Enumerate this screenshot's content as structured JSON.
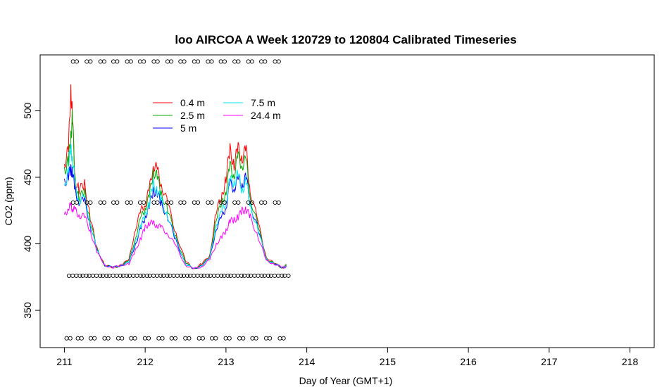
{
  "chart_data": {
    "type": "line",
    "title": "loo AIRCOA A  Week 120729 to 120804  Calibrated Timeseries",
    "xlabel": "Day of Year (GMT+1)",
    "ylabel": "CO2 (ppm)",
    "xlim": [
      210.7,
      218.3
    ],
    "ylim": [
      322,
      542
    ],
    "xticks": [
      "211",
      "212",
      "213",
      "214",
      "215",
      "216",
      "217",
      "218"
    ],
    "yticks": [
      "350",
      "400",
      "450",
      "500"
    ],
    "grid": false,
    "legend_position": "top-left",
    "series": [
      {
        "name": "0.4 m",
        "color": "#ff0000",
        "x": [
          211.0,
          211.05,
          211.08,
          211.1,
          211.13,
          211.18,
          211.25,
          211.32,
          211.4,
          211.5,
          211.6,
          211.7,
          211.8,
          211.88,
          211.95,
          212.0,
          212.05,
          212.1,
          212.15,
          212.2,
          212.28,
          212.38,
          212.5,
          212.6,
          212.7,
          212.8,
          212.88,
          212.95,
          213.0,
          213.05,
          213.1,
          213.15,
          213.2,
          213.25,
          213.3,
          213.4,
          213.5,
          213.6,
          213.7,
          213.75
        ],
        "y": [
          460,
          470,
          517,
          495,
          450,
          440,
          445,
          420,
          397,
          384,
          382,
          384,
          388,
          412,
          425,
          430,
          440,
          460,
          455,
          445,
          430,
          408,
          387,
          381,
          385,
          391,
          425,
          435,
          450,
          470,
          460,
          471,
          465,
          470,
          440,
          415,
          390,
          385,
          382,
          384
        ]
      },
      {
        "name": "2.5 m",
        "color": "#00aa00",
        "x": [
          211.0,
          211.05,
          211.08,
          211.1,
          211.13,
          211.18,
          211.25,
          211.32,
          211.4,
          211.5,
          211.6,
          211.7,
          211.8,
          211.88,
          211.95,
          212.0,
          212.05,
          212.1,
          212.15,
          212.2,
          212.28,
          212.38,
          212.5,
          212.6,
          212.7,
          212.8,
          212.88,
          212.95,
          213.0,
          213.05,
          213.1,
          213.15,
          213.2,
          213.25,
          213.3,
          213.4,
          213.5,
          213.6,
          213.7,
          213.75
        ],
        "y": [
          455,
          462,
          480,
          497,
          448,
          435,
          438,
          418,
          396,
          384,
          382,
          384,
          387,
          405,
          420,
          427,
          435,
          455,
          450,
          438,
          425,
          405,
          386,
          381,
          384,
          390,
          420,
          430,
          440,
          458,
          452,
          465,
          460,
          462,
          435,
          412,
          389,
          385,
          382,
          384
        ]
      },
      {
        "name": "5 m",
        "color": "#0000ff",
        "x": [
          211.0,
          211.05,
          211.08,
          211.1,
          211.13,
          211.18,
          211.25,
          211.32,
          211.4,
          211.5,
          211.6,
          211.7,
          211.8,
          211.88,
          211.95,
          212.0,
          212.05,
          212.1,
          212.15,
          212.2,
          212.28,
          212.38,
          212.5,
          212.6,
          212.7,
          212.8,
          212.88,
          212.95,
          213.0,
          213.05,
          213.1,
          213.15,
          213.2,
          213.25,
          213.3,
          213.4,
          213.5,
          213.6,
          213.7,
          213.75
        ],
        "y": [
          445,
          452,
          455,
          455,
          440,
          432,
          432,
          415,
          395,
          384,
          382,
          384,
          386,
          400,
          412,
          420,
          428,
          440,
          438,
          430,
          420,
          402,
          385,
          381,
          384,
          389,
          412,
          420,
          428,
          445,
          442,
          448,
          445,
          450,
          430,
          410,
          388,
          385,
          382,
          383
        ]
      },
      {
        "name": "7.5 m",
        "color": "#00e5ee",
        "x": [
          211.0,
          211.05,
          211.08,
          211.1,
          211.13,
          211.18,
          211.25,
          211.32,
          211.4,
          211.5,
          211.6,
          211.7,
          211.8,
          211.88,
          211.95,
          212.0,
          212.05,
          212.1,
          212.15,
          212.2,
          212.28,
          212.38,
          212.5,
          212.6,
          212.7,
          212.8,
          212.88,
          212.95,
          213.0,
          213.05,
          213.1,
          213.15,
          213.2,
          213.25,
          213.3,
          213.4,
          213.5,
          213.6,
          213.7,
          213.75
        ],
        "y": [
          440,
          458,
          470,
          465,
          445,
          433,
          434,
          416,
          395,
          384,
          382,
          384,
          386,
          402,
          414,
          422,
          430,
          445,
          440,
          432,
          421,
          403,
          385,
          381,
          384,
          389,
          415,
          424,
          432,
          448,
          446,
          452,
          440,
          448,
          428,
          410,
          388,
          385,
          382,
          383
        ]
      },
      {
        "name": "24.4 m",
        "color": "#ff00ff",
        "x": [
          211.0,
          211.05,
          211.08,
          211.1,
          211.13,
          211.18,
          211.25,
          211.32,
          211.4,
          211.5,
          211.6,
          211.7,
          211.8,
          211.88,
          211.95,
          212.0,
          212.05,
          212.1,
          212.15,
          212.2,
          212.28,
          212.38,
          212.5,
          212.6,
          212.7,
          212.8,
          212.88,
          212.95,
          213.0,
          213.05,
          213.1,
          213.15,
          213.2,
          213.25,
          213.3,
          213.4,
          213.5,
          213.6,
          213.7,
          213.75
        ],
        "y": [
          420,
          428,
          428,
          427,
          425,
          422,
          420,
          410,
          394,
          384,
          382,
          384,
          385,
          395,
          405,
          412,
          416,
          415,
          414,
          412,
          408,
          398,
          384,
          381,
          383,
          388,
          400,
          405,
          410,
          417,
          418,
          420,
          425,
          426,
          420,
          405,
          387,
          385,
          382,
          383
        ]
      }
    ],
    "marker_rows": [
      {
        "y": 537,
        "x": [
          211.13,
          211.3,
          211.47,
          211.63,
          211.8,
          211.96,
          212.13,
          212.3,
          212.46,
          212.63,
          212.8,
          212.96,
          213.13,
          213.3,
          213.46,
          213.63
        ]
      },
      {
        "y": 431,
        "x": [
          211.13,
          211.3,
          211.47,
          211.63,
          211.8,
          211.96,
          212.13,
          212.3,
          212.46,
          212.63,
          212.8,
          212.96,
          213.13,
          213.3,
          213.46,
          213.63
        ]
      },
      {
        "y": 376,
        "x": [
          211.08,
          211.17,
          211.25,
          211.33,
          211.42,
          211.5,
          211.58,
          211.67,
          211.75,
          211.83,
          211.92,
          212.0,
          212.08,
          212.17,
          212.25,
          212.33,
          212.42,
          212.5,
          212.58,
          212.67,
          212.75,
          212.83,
          212.92,
          213.0,
          213.08,
          213.17,
          213.25,
          213.33,
          213.42,
          213.5,
          213.58,
          213.67,
          213.75
        ]
      },
      {
        "y": 329,
        "x": [
          211.05,
          211.19,
          211.35,
          211.52,
          211.69,
          211.85,
          212.02,
          212.19,
          212.35,
          212.52,
          212.69,
          212.85,
          213.02,
          213.19,
          213.35,
          213.52,
          213.69
        ]
      }
    ]
  }
}
